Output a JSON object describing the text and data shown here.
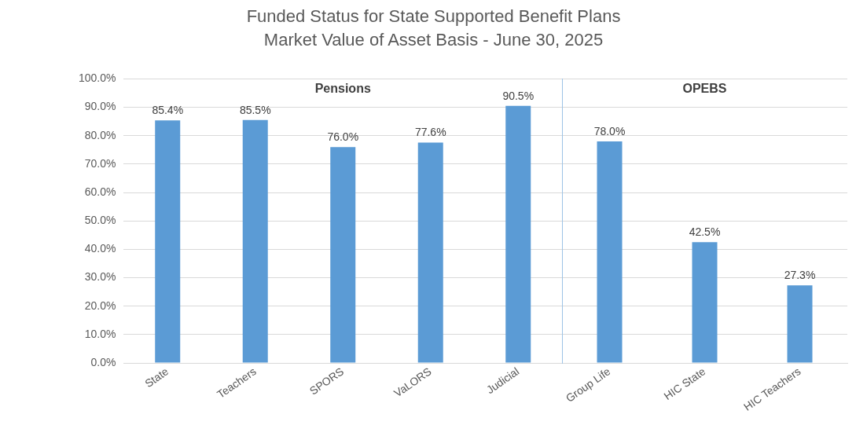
{
  "chart_data": [
    {
      "type": "bar",
      "title": "Funded Status for State Supported Benefit Plans",
      "subtitle": "Market Value of Asset Basis - June 30, 2025",
      "categories": [
        "State",
        "Teachers",
        "SPORS",
        "VaLORS",
        "Judicial"
      ],
      "values": [
        85.4,
        85.5,
        76.0,
        77.6,
        90.5
      ],
      "value_labels": [
        "85.4%",
        "85.5%",
        "76.0%",
        "77.6%",
        "90.5%"
      ],
      "color": "#5b9bd5",
      "ylim": [
        0,
        100
      ],
      "yticks": [
        {
          "value": 0,
          "label": "0.0%"
        },
        {
          "value": 10,
          "label": "10.0%"
        },
        {
          "value": 20,
          "label": "20.0%"
        },
        {
          "value": 30,
          "label": "30.0%"
        },
        {
          "value": 40,
          "label": "40.0%"
        },
        {
          "value": 50,
          "label": "50.0%"
        },
        {
          "value": 60,
          "label": "60.0%"
        },
        {
          "value": 70,
          "label": "70.0%"
        },
        {
          "value": 80,
          "label": "80.0%"
        },
        {
          "value": 90,
          "label": "90.0%"
        },
        {
          "value": 100,
          "label": "100.0%"
        }
      ],
      "annotations": [
        "Pensions"
      ],
      "grid": "y",
      "legend": false
    },
    {
      "type": "bar",
      "categories": [
        "Group Life",
        "HIC State",
        "HIC Teachers"
      ],
      "values": [
        78.0,
        42.5,
        27.3
      ],
      "value_labels": [
        "78.0%",
        "42.5%",
        "27.3%"
      ],
      "color": "#5b9bd5",
      "ylim": [
        0,
        100
      ],
      "yticks": [
        0,
        10,
        20,
        30,
        40,
        50,
        60,
        70,
        80,
        90,
        100
      ],
      "annotations": [
        "OPEBS"
      ],
      "tick_labels": "x",
      "grid": "y",
      "legend": false
    }
  ]
}
